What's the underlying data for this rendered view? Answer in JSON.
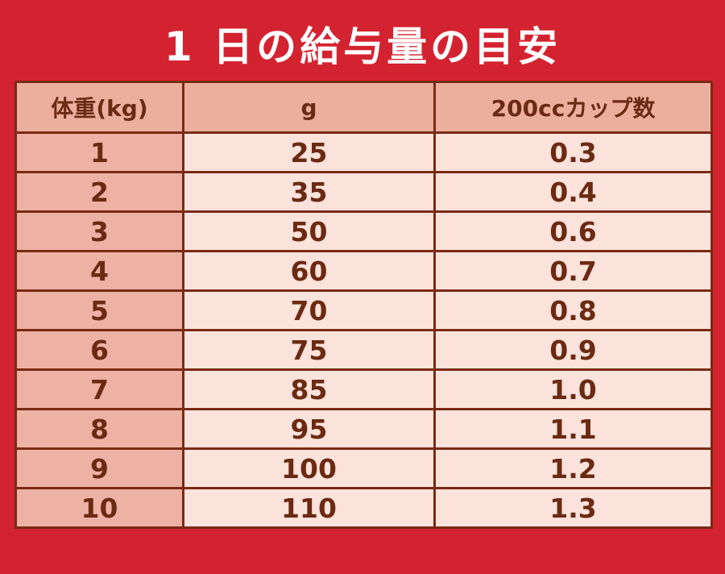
{
  "title": "1 日の給与量の目安",
  "table": {
    "headers": [
      "体重(kg)",
      "g",
      "200ccカップ数"
    ],
    "rows": [
      [
        "1",
        "25",
        "0.3"
      ],
      [
        "2",
        "35",
        "0.4"
      ],
      [
        "3",
        "50",
        "0.6"
      ],
      [
        "4",
        "60",
        "0.7"
      ],
      [
        "5",
        "70",
        "0.8"
      ],
      [
        "6",
        "75",
        "0.9"
      ],
      [
        "7",
        "85",
        "1.0"
      ],
      [
        "8",
        "95",
        "1.1"
      ],
      [
        "9",
        "100",
        "1.2"
      ],
      [
        "10",
        "110",
        "1.3"
      ]
    ]
  },
  "colors": {
    "background": "#d42330",
    "title_text": "#ffffff",
    "header_fill": "#ecaf9e",
    "weight_column_fill": "#edb2a3",
    "value_cell_fill": "#fbe3dc",
    "border": "#7a2a14",
    "table_text": "#6b2a12"
  }
}
